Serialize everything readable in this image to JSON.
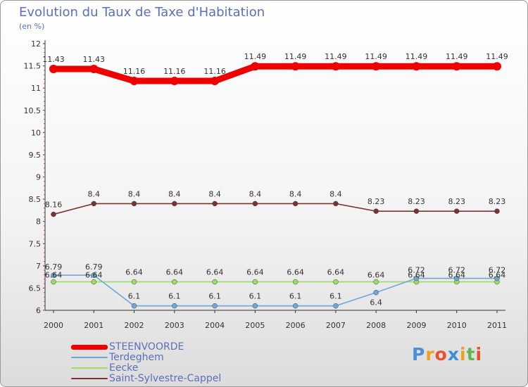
{
  "header": {
    "title": "Evolution du Taux de Taxe d'Habitation",
    "subtitle": "(en %)"
  },
  "chart_data": {
    "type": "line",
    "title": "Evolution du Taux de Taxe d'Habitation",
    "ylabel": "(en %)",
    "xlabel": "",
    "categories": [
      "2000",
      "2001",
      "2002",
      "2003",
      "2004",
      "2005",
      "2006",
      "2007",
      "2008",
      "2009",
      "2010",
      "2011"
    ],
    "ylim": [
      6,
      12
    ],
    "yticks": [
      "6",
      "6.5",
      "7",
      "7.5",
      "8",
      "8.5",
      "9",
      "9.5",
      "10",
      "10.5",
      "11",
      "11.5",
      "12"
    ],
    "grid": false,
    "legend_position": "bottom-left",
    "series": [
      {
        "name": "STEENVOORDE",
        "color": "#ee0000",
        "values": [
          11.43,
          11.43,
          11.16,
          11.16,
          11.16,
          11.49,
          11.49,
          11.49,
          11.49,
          11.49,
          11.49,
          11.49
        ],
        "labels": [
          "11.43",
          "11.43",
          "11.16",
          "11.16",
          "11.16",
          "11.49",
          "11.49",
          "11.49",
          "11.49",
          "11.49",
          "11.49",
          "11.49"
        ]
      },
      {
        "name": "Terdeghem",
        "color": "#6fa8d6",
        "values": [
          6.79,
          6.79,
          6.1,
          6.1,
          6.1,
          6.1,
          6.1,
          6.1,
          6.4,
          6.72,
          6.72,
          6.72
        ],
        "labels": [
          "6.79",
          "6.79",
          "6.1",
          "6.1",
          "6.1",
          "6.1",
          "6.1",
          "6.1",
          "6.4",
          "6.72",
          "6.72",
          "6.72"
        ]
      },
      {
        "name": "Eecke",
        "color": "#99dd66",
        "values": [
          6.64,
          6.64,
          6.64,
          6.64,
          6.64,
          6.64,
          6.64,
          6.64,
          6.64,
          6.64,
          6.64,
          6.64
        ],
        "labels": [
          "6.64",
          "6.64",
          "6.64",
          "6.64",
          "6.64",
          "6.64",
          "6.64",
          "6.64",
          "6.64",
          "6.64",
          "6.64",
          "6.64"
        ]
      },
      {
        "name": "Saint-Sylvestre-Cappel",
        "color": "#7a3333",
        "values": [
          8.16,
          8.4,
          8.4,
          8.4,
          8.4,
          8.4,
          8.4,
          8.4,
          8.23,
          8.23,
          8.23,
          8.23
        ],
        "labels": [
          "8.16",
          "8.4",
          "8.4",
          "8.4",
          "8.4",
          "8.4",
          "8.4",
          "8.4",
          "8.23",
          "8.23",
          "8.23",
          "8.23"
        ]
      }
    ]
  },
  "legend": {
    "items": [
      "STEENVOORDE",
      "Terdeghem",
      "Eecke",
      "Saint-Sylvestre-Cappel"
    ]
  },
  "logo": {
    "letters": [
      "P",
      "r",
      "o",
      "x",
      "i",
      "t",
      "i"
    ],
    "colors": [
      "#4b8fd6",
      "#f0a020",
      "#e85030",
      "#3a8fd8",
      "#f0a020",
      "#5cb84a",
      "#e85030"
    ]
  }
}
